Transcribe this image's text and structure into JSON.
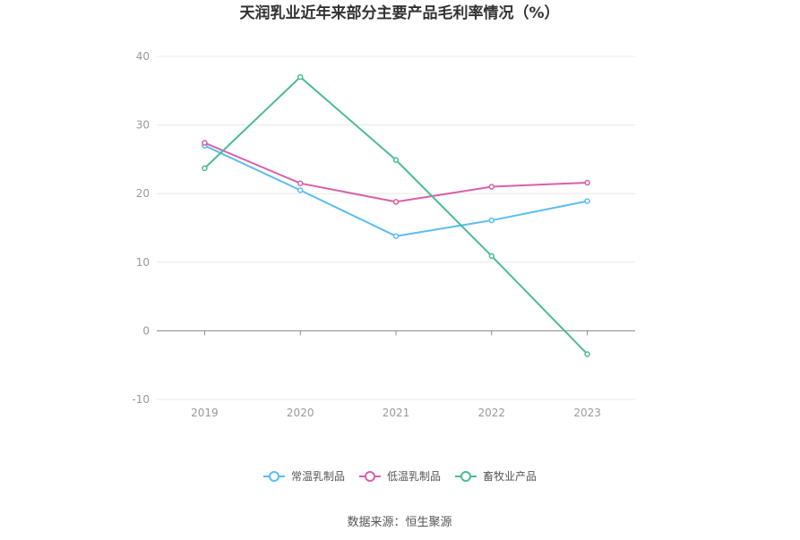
{
  "chart_data": {
    "type": "line",
    "title": "天润乳业近年来部分主要产品毛利率情况（%）",
    "categories": [
      "2019",
      "2020",
      "2021",
      "2022",
      "2023"
    ],
    "ylim": [
      -10,
      40
    ],
    "yticks": [
      40,
      30,
      20,
      10,
      0,
      -10
    ],
    "grid": true,
    "legend_position": "bottom-center",
    "series": [
      {
        "name": "常温乳制品",
        "color": "#5bbdf0",
        "values": [
          27.0,
          20.5,
          13.8,
          16.1,
          18.9
        ]
      },
      {
        "name": "低温乳制品",
        "color": "#d760a8",
        "values": [
          27.4,
          21.5,
          18.8,
          21.0,
          21.6
        ]
      },
      {
        "name": "畜牧业产品",
        "color": "#4cbb97",
        "values": [
          23.7,
          37.0,
          24.9,
          10.9,
          -3.4
        ]
      }
    ]
  },
  "footer": {
    "source": "数据来源：恒生聚源"
  }
}
